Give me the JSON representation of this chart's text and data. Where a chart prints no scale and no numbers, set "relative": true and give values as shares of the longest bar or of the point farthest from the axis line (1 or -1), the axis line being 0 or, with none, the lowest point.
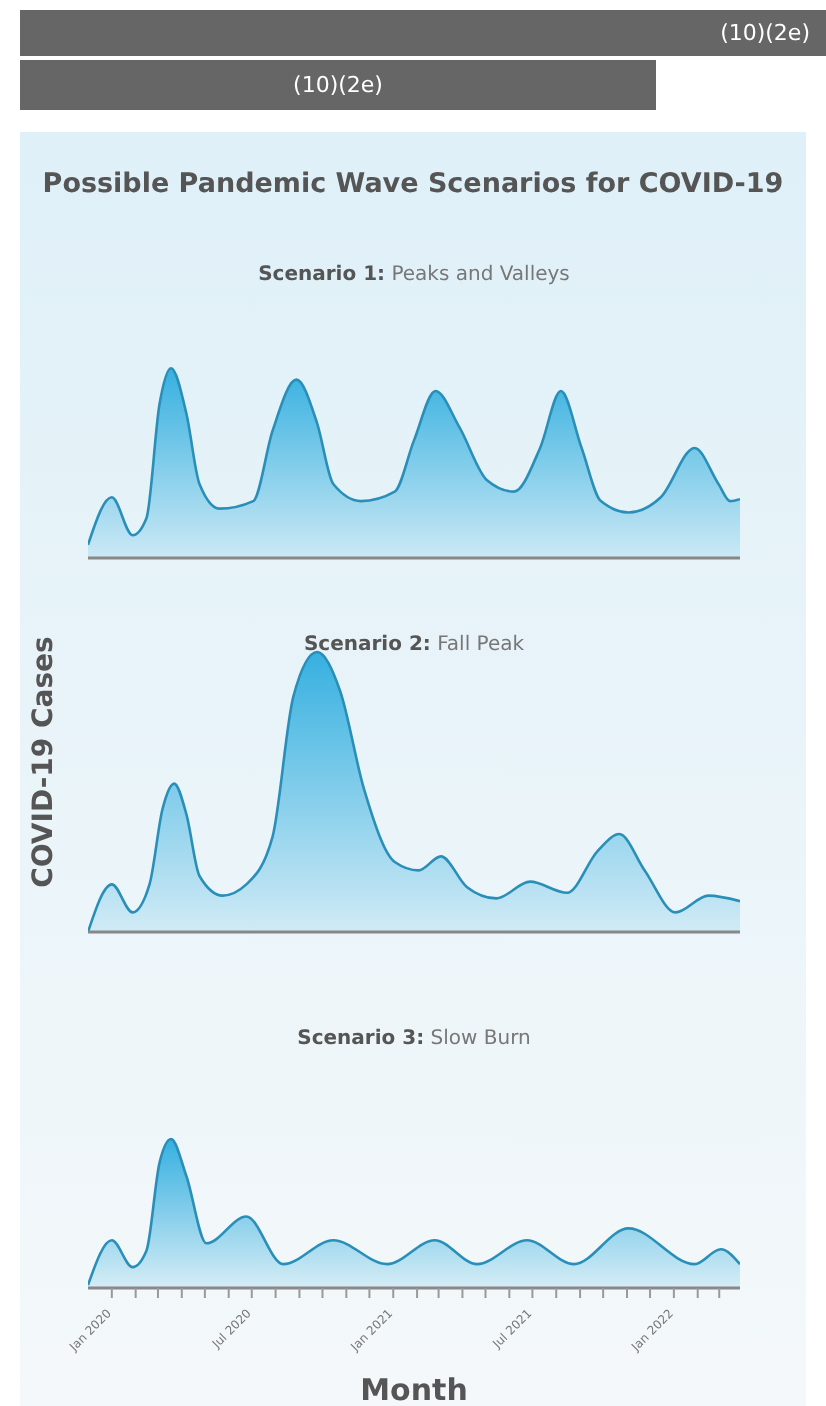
{
  "chart_data": [
    {
      "type": "area",
      "title": "Possible Pandemic Wave Scenarios for COVID-19",
      "subtitle": "Scenario 1: Peaks and Valleys",
      "annotations": [
        "(10)(2e)",
        "(10)(2e)"
      ],
      "relative": true,
      "tick_labels": false,
      "xlim": [
        "2019-12-01",
        "2022-03-28"
      ],
      "series": [
        {
          "color": "#36b0e0",
          "x": [
            "2019-12-01",
            "2020-01-01",
            "2020-01-28",
            "2020-02-15",
            "2020-03-03",
            "2020-03-18",
            "2020-04-07",
            "2020-04-24",
            "2020-05-20",
            "2020-07-03",
            "2020-07-28",
            "2020-08-28",
            "2020-09-24",
            "2020-10-15",
            "2020-11-20",
            "2021-01-03",
            "2021-01-28",
            "2021-02-25",
            "2021-03-28",
            "2021-05-03",
            "2021-06-07",
            "2021-07-11",
            "2021-08-07",
            "2021-09-03",
            "2021-09-28",
            "2021-11-03",
            "2021-12-15",
            "2022-01-28",
            "2022-02-28",
            "2022-03-15",
            "2022-03-28"
          ],
          "values": [
            0.07,
            0.32,
            0.12,
            0.21,
            0.81,
            1.0,
            0.76,
            0.39,
            0.26,
            0.3,
            0.67,
            0.94,
            0.71,
            0.39,
            0.3,
            0.35,
            0.62,
            0.88,
            0.69,
            0.41,
            0.35,
            0.58,
            0.88,
            0.58,
            0.3,
            0.24,
            0.32,
            0.58,
            0.39,
            0.3,
            0.31
          ]
        }
      ]
    },
    {
      "type": "area",
      "subtitle": "Scenario 2: Fall Peak",
      "ylabel": "COVID-19 Cases",
      "relative": true,
      "tick_labels": false,
      "xlim": [
        "2019-12-01",
        "2022-03-28"
      ],
      "series": [
        {
          "color": "#36b0e0",
          "x": [
            "2019-12-01",
            "2020-01-01",
            "2020-01-28",
            "2020-02-19",
            "2020-03-07",
            "2020-03-22",
            "2020-04-07",
            "2020-04-24",
            "2020-05-24",
            "2020-06-24",
            "2020-07-28",
            "2020-08-24",
            "2020-09-24",
            "2020-10-24",
            "2020-11-24",
            "2021-01-03",
            "2021-02-03",
            "2021-03-04",
            "2021-04-07",
            "2021-05-15",
            "2021-06-28",
            "2021-08-15",
            "2021-09-24",
            "2021-10-22",
            "2021-11-24",
            "2022-01-03",
            "2022-02-15",
            "2022-03-28"
          ],
          "values": [
            0.0,
            0.17,
            0.07,
            0.17,
            0.44,
            0.53,
            0.42,
            0.2,
            0.13,
            0.17,
            0.34,
            0.84,
            1.0,
            0.86,
            0.51,
            0.25,
            0.22,
            0.27,
            0.16,
            0.12,
            0.18,
            0.14,
            0.29,
            0.35,
            0.22,
            0.07,
            0.13,
            0.11
          ]
        }
      ]
    },
    {
      "type": "area",
      "subtitle": "Scenario 3: Slow Burn",
      "xlabel": "Month",
      "relative": true,
      "tick_labels": "x",
      "xlim": [
        "2019-12-01",
        "2022-03-28"
      ],
      "xticks": [
        {
          "value": "2020-01",
          "label": "Jan 2020"
        },
        {
          "value": "2020-02",
          "label": null
        },
        {
          "value": "2020-03",
          "label": null
        },
        {
          "value": "2020-04",
          "label": null
        },
        {
          "value": "2020-05",
          "label": null
        },
        {
          "value": "2020-06",
          "label": null
        },
        {
          "value": "2020-07",
          "label": "Jul 2020"
        },
        {
          "value": "2020-08",
          "label": null
        },
        {
          "value": "2020-09",
          "label": null
        },
        {
          "value": "2020-10",
          "label": null
        },
        {
          "value": "2020-11",
          "label": null
        },
        {
          "value": "2020-12",
          "label": null
        },
        {
          "value": "2021-01",
          "label": "Jan 2021"
        },
        {
          "value": "2021-02",
          "label": null
        },
        {
          "value": "2021-03",
          "label": null
        },
        {
          "value": "2021-04",
          "label": null
        },
        {
          "value": "2021-05",
          "label": null
        },
        {
          "value": "2021-06",
          "label": null
        },
        {
          "value": "2021-07",
          "label": "Jul 2021"
        },
        {
          "value": "2021-08",
          "label": null
        },
        {
          "value": "2021-09",
          "label": null
        },
        {
          "value": "2021-10",
          "label": null
        },
        {
          "value": "2021-11",
          "label": null
        },
        {
          "value": "2021-12",
          "label": null
        },
        {
          "value": "2022-01",
          "label": "Jan 2022"
        },
        {
          "value": "2022-02",
          "label": null
        },
        {
          "value": "2022-03",
          "label": null
        }
      ],
      "series": [
        {
          "color": "#36b0e0",
          "x": [
            "2019-12-01",
            "2020-01-01",
            "2020-01-28",
            "2020-02-15",
            "2020-03-03",
            "2020-03-18",
            "2020-04-07",
            "2020-05-03",
            "2020-06-24",
            "2020-08-11",
            "2020-10-15",
            "2020-12-24",
            "2021-02-24",
            "2021-04-20",
            "2021-06-24",
            "2021-08-24",
            "2021-11-03",
            "2022-01-28",
            "2022-03-03",
            "2022-03-28"
          ],
          "values": [
            0.02,
            0.32,
            0.14,
            0.25,
            0.84,
            1.0,
            0.75,
            0.3,
            0.48,
            0.16,
            0.32,
            0.16,
            0.32,
            0.16,
            0.32,
            0.16,
            0.4,
            0.16,
            0.26,
            0.16
          ]
        }
      ]
    }
  ]
}
